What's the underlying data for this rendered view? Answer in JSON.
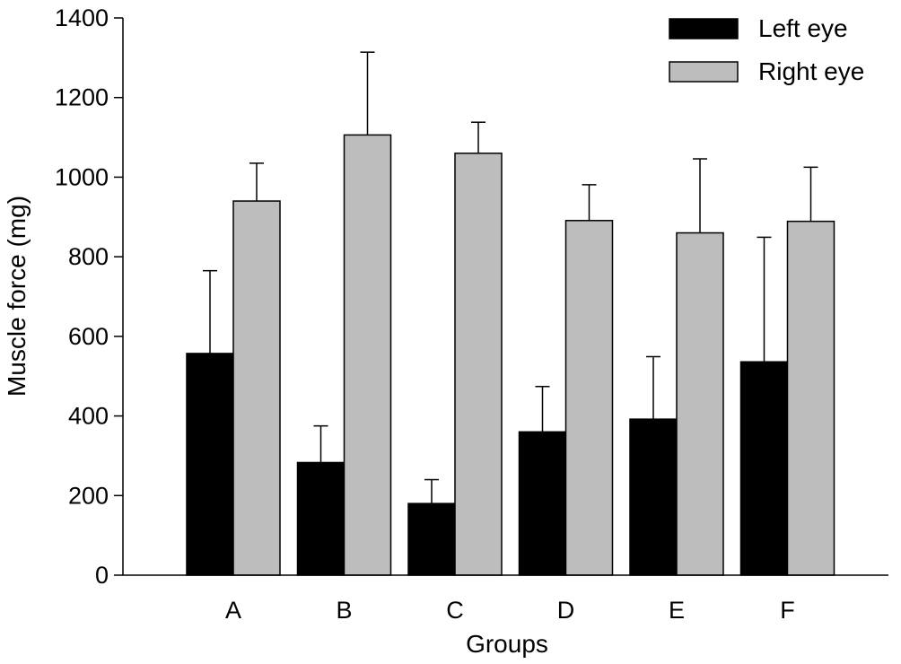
{
  "chart_data": {
    "type": "bar",
    "xlabel": "Groups",
    "ylabel": "Muscle force (mg)",
    "ylim": [
      0,
      1400
    ],
    "yticks": [
      0,
      200,
      400,
      600,
      800,
      1000,
      1200,
      1400
    ],
    "categories": [
      "A",
      "B",
      "C",
      "D",
      "E",
      "F"
    ],
    "legend_position": "top-right",
    "grid": false,
    "error_bars": "upper",
    "series": [
      {
        "name": "Left eye",
        "color": "#000000",
        "values": [
          557,
          283,
          180,
          360,
          392,
          536
        ],
        "errors": [
          208,
          92,
          60,
          114,
          157,
          313
        ]
      },
      {
        "name": "Right eye",
        "color": "#bdbdbd",
        "values": [
          940,
          1106,
          1060,
          891,
          860,
          889
        ],
        "errors": [
          95,
          208,
          78,
          90,
          186,
          136
        ]
      }
    ]
  }
}
